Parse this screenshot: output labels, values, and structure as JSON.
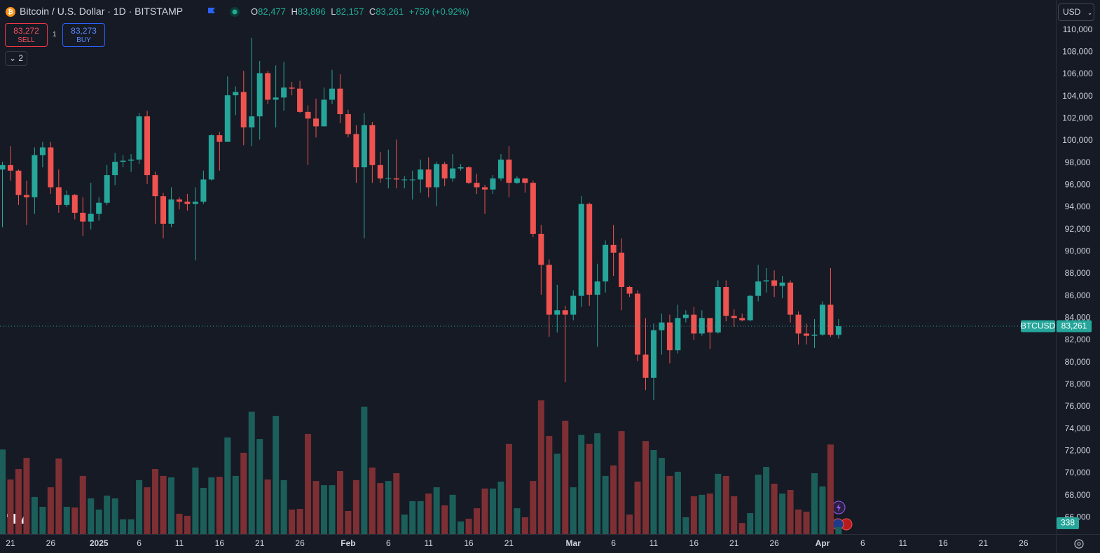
{
  "header": {
    "title": "Bitcoin / U.S. Dollar · 1D · BITSTAMP",
    "ohlc": [
      {
        "label": "O",
        "value": "82,477"
      },
      {
        "label": "H",
        "value": "83,896"
      },
      {
        "label": "L",
        "value": "82,157"
      },
      {
        "label": "C",
        "value": "83,261"
      }
    ],
    "change": "+759 (+0.92%)"
  },
  "trade": {
    "sell_price": "83,272",
    "sell": "SELL",
    "quantity": "1",
    "buy_price": "83,273",
    "buy": "BUY"
  },
  "indicators_toggle": "2",
  "currency": "USD",
  "chart_data": {
    "type": "candlestick",
    "x": [
      "12-20",
      "12-21",
      "12-22",
      "12-23",
      "12-24",
      "12-25",
      "12-26",
      "12-27",
      "12-28",
      "12-29",
      "12-30",
      "12-31",
      "01-01",
      "01-02",
      "01-03",
      "01-04",
      "01-05",
      "01-06",
      "01-07",
      "01-08",
      "01-09",
      "01-10",
      "01-11",
      "01-12",
      "01-13",
      "01-14",
      "01-15",
      "01-16",
      "01-17",
      "01-18",
      "01-19",
      "01-20",
      "01-21",
      "01-22",
      "01-23",
      "01-24",
      "01-25",
      "01-26",
      "01-27",
      "01-28",
      "01-29",
      "01-30",
      "01-31",
      "02-01",
      "02-02",
      "02-03",
      "02-04",
      "02-05",
      "02-06",
      "02-07",
      "02-08",
      "02-09",
      "02-10",
      "02-11",
      "02-12",
      "02-13",
      "02-14",
      "02-15",
      "02-16",
      "02-17",
      "02-18",
      "02-19",
      "02-20",
      "02-21",
      "02-22",
      "02-23",
      "02-24",
      "02-25",
      "02-26",
      "02-27",
      "02-28",
      "03-01",
      "03-02",
      "03-03",
      "03-04",
      "03-05",
      "03-06",
      "03-07",
      "03-08",
      "03-09",
      "03-10",
      "03-11",
      "03-12",
      "03-13",
      "03-14",
      "03-15",
      "03-16",
      "03-17",
      "03-18",
      "03-19",
      "03-20",
      "03-21",
      "03-22",
      "03-23",
      "03-24",
      "03-25",
      "03-26",
      "03-27",
      "03-28",
      "03-29",
      "03-30",
      "03-31",
      "04-01",
      "04-02",
      "04-03"
    ],
    "open": [
      97400,
      97800,
      97300,
      95100,
      94900,
      98700,
      99400,
      95800,
      94200,
      95100,
      93500,
      92700,
      93400,
      94400,
      96900,
      98100,
      98200,
      98300,
      102200,
      96900,
      95000,
      92500,
      94700,
      94500,
      94300,
      94500,
      96500,
      100500,
      99900,
      104100,
      104400,
      101200,
      102200,
      106100,
      103700,
      103900,
      104800,
      104700,
      102600,
      102000,
      101300,
      103700,
      104700,
      102400,
      100600,
      97600,
      101400,
      97800,
      96600,
      96600,
      96500,
      96500,
      96500,
      97400,
      95800,
      97900,
      96600,
      97500,
      97600,
      96200,
      95800,
      95600,
      96600,
      98300,
      96200,
      96600,
      96200,
      91600,
      88800,
      84300,
      84700,
      84300,
      86000,
      94300,
      86100,
      87300,
      90600,
      89900,
      86800,
      86200,
      80700,
      78600,
      82900,
      83600,
      81100,
      84000,
      84300,
      82600,
      84000,
      82700,
      86800,
      84200,
      84000,
      83800,
      86000,
      87300,
      87400,
      86900,
      87200,
      84300,
      82600,
      82400,
      82500,
      85200,
      82477
    ],
    "high": [
      98100,
      99500,
      97400,
      96400,
      99400,
      99900,
      99900,
      97400,
      95500,
      95200,
      94900,
      96200,
      94900,
      97800,
      98900,
      98700,
      98800,
      102500,
      102700,
      97200,
      95300,
      95800,
      94900,
      95200,
      95800,
      97300,
      100600,
      100800,
      105800,
      104900,
      106300,
      109300,
      107200,
      106300,
      106800,
      107100,
      105300,
      105400,
      103200,
      103800,
      104800,
      106400,
      106000,
      102800,
      101400,
      102500,
      101700,
      99000,
      99200,
      100100,
      96800,
      97300,
      98300,
      98500,
      98100,
      98100,
      98800,
      97900,
      97700,
      97000,
      96000,
      96900,
      98800,
      99500,
      96800,
      96600,
      96400,
      92400,
      89300,
      87000,
      85100,
      86500,
      95000,
      94400,
      88900,
      91000,
      92400,
      91200,
      86900,
      86500,
      84000,
      83500,
      84400,
      84300,
      85200,
      84700,
      85000,
      84700,
      84000,
      87400,
      87400,
      84800,
      84400,
      86100,
      88800,
      88500,
      88300,
      87800,
      87400,
      84600,
      83500,
      83900,
      85500,
      88500,
      83896
    ],
    "low": [
      92200,
      96400,
      94200,
      92400,
      93400,
      97600,
      95200,
      93500,
      94000,
      92900,
      91400,
      92000,
      92800,
      94200,
      96000,
      97600,
      97200,
      97900,
      96100,
      92500,
      91200,
      92200,
      93800,
      93700,
      89200,
      94300,
      96400,
      97300,
      99900,
      102300,
      99600,
      99500,
      100100,
      103300,
      101200,
      102700,
      104100,
      102500,
      97800,
      100300,
      101300,
      103300,
      101600,
      100300,
      96200,
      91200,
      96200,
      96200,
      95700,
      95700,
      95700,
      94700,
      95300,
      94900,
      94100,
      95900,
      96300,
      97300,
      96100,
      95200,
      93400,
      95200,
      96400,
      94900,
      96100,
      95300,
      91300,
      86100,
      82300,
      82700,
      78200,
      83800,
      85000,
      85100,
      81400,
      86300,
      87800,
      84700,
      85900,
      80100,
      77500,
      76600,
      80700,
      79900,
      80800,
      83600,
      82000,
      82400,
      81200,
      82600,
      83700,
      83200,
      83700,
      83700,
      85500,
      86300,
      85900,
      85800,
      83600,
      81600,
      81600,
      81300,
      82400,
      82300,
      82157
    ],
    "close": [
      97800,
      97300,
      95100,
      94900,
      98700,
      99400,
      95800,
      94200,
      95100,
      93500,
      92700,
      93400,
      94400,
      96900,
      98100,
      98200,
      98300,
      102200,
      96900,
      95000,
      92500,
      94700,
      94500,
      94300,
      94500,
      96500,
      100500,
      99900,
      104100,
      104400,
      101200,
      102200,
      106100,
      103700,
      103900,
      104800,
      104700,
      102600,
      102000,
      101300,
      103700,
      104700,
      102400,
      100600,
      97600,
      101400,
      97800,
      96600,
      96600,
      96500,
      96500,
      96500,
      97400,
      95800,
      97900,
      96600,
      97500,
      97600,
      96200,
      95800,
      95600,
      96600,
      98300,
      96200,
      96600,
      96200,
      91600,
      88800,
      84300,
      84700,
      84300,
      86000,
      94300,
      86100,
      87300,
      90600,
      89900,
      86800,
      86200,
      80700,
      78600,
      82900,
      83600,
      81100,
      84000,
      84300,
      82600,
      84000,
      82700,
      86800,
      84200,
      84000,
      83800,
      86000,
      87300,
      87400,
      86900,
      87200,
      84300,
      82600,
      82400,
      82500,
      85200,
      82477,
      83261
    ],
    "volume": [
      4030,
      2600,
      3100,
      3630,
      1770,
      1300,
      2230,
      3600,
      1300,
      1270,
      2770,
      1700,
      1170,
      1830,
      1700,
      700,
      700,
      2570,
      2230,
      3100,
      2770,
      2700,
      970,
      870,
      3170,
      2200,
      2700,
      2730,
      4600,
      2770,
      3870,
      5830,
      4530,
      2600,
      5630,
      2570,
      1170,
      1200,
      4770,
      2530,
      2330,
      2330,
      3000,
      1100,
      2570,
      6070,
      3170,
      2430,
      2530,
      2900,
      930,
      1570,
      1570,
      1930,
      2230,
      1370,
      1870,
      600,
      730,
      1230,
      2170,
      2170,
      2500,
      4300,
      1230,
      800,
      2530,
      6370,
      4670,
      3830,
      5400,
      2230,
      4730,
      4300,
      4800,
      2770,
      3270,
      4900,
      930,
      2500,
      4430,
      4000,
      3630,
      2770,
      2970,
      800,
      1800,
      1870,
      1930,
      2870,
      2770,
      1800,
      530,
      1000,
      2830,
      3200,
      2400,
      1930,
      2100,
      1170,
      1070,
      2900,
      2270,
      4270,
      338
    ],
    "ylim": [
      64500,
      112700
    ],
    "vlim": [
      0,
      7000
    ],
    "yticks": [
      {
        "value": 66000,
        "label": "66,000"
      },
      {
        "value": 68000,
        "label": "68,000"
      },
      {
        "value": 70000,
        "label": "70,000"
      },
      {
        "value": 72000,
        "label": "72,000"
      },
      {
        "value": 74000,
        "label": "74,000"
      },
      {
        "value": 76000,
        "label": "76,000"
      },
      {
        "value": 78000,
        "label": "78,000"
      },
      {
        "value": 80000,
        "label": "80,000"
      },
      {
        "value": 82000,
        "label": "82,000"
      },
      {
        "value": 84000,
        "label": "84,000"
      },
      {
        "value": 86000,
        "label": "86,000"
      },
      {
        "value": 88000,
        "label": "88,000"
      },
      {
        "value": 90000,
        "label": "90,000"
      },
      {
        "value": 92000,
        "label": "92,000"
      },
      {
        "value": 94000,
        "label": "94,000"
      },
      {
        "value": 96000,
        "label": "96,000"
      },
      {
        "value": 98000,
        "label": "98,000"
      },
      {
        "value": 100000,
        "label": "100,000"
      },
      {
        "value": 102000,
        "label": "102,000"
      },
      {
        "value": 104000,
        "label": "104,000"
      },
      {
        "value": 106000,
        "label": "106,000"
      },
      {
        "value": 108000,
        "label": "108,000"
      },
      {
        "value": 110000,
        "label": "110,000"
      }
    ],
    "xticks": [
      {
        "value": "12-21",
        "label": "21"
      },
      {
        "value": "12-26",
        "label": "26"
      },
      {
        "value": "01-01",
        "label": "2025"
      },
      {
        "value": "01-06",
        "label": "6"
      },
      {
        "value": "01-11",
        "label": "11"
      },
      {
        "value": "01-16",
        "label": "16"
      },
      {
        "value": "01-21",
        "label": "21"
      },
      {
        "value": "01-26",
        "label": "26"
      },
      {
        "value": "02-01",
        "label": "Feb"
      },
      {
        "value": "02-06",
        "label": "6"
      },
      {
        "value": "02-11",
        "label": "11"
      },
      {
        "value": "02-16",
        "label": "16"
      },
      {
        "value": "02-21",
        "label": "21"
      },
      {
        "value": "03-01",
        "label": "Mar"
      },
      {
        "value": "03-06",
        "label": "6"
      },
      {
        "value": "03-11",
        "label": "11"
      },
      {
        "value": "03-16",
        "label": "16"
      },
      {
        "value": "03-21",
        "label": "21"
      },
      {
        "value": "03-26",
        "label": "26"
      },
      {
        "value": "04-01",
        "label": "Apr"
      },
      {
        "value": "04-06",
        "label": "6"
      },
      {
        "value": "04-11",
        "label": "11"
      },
      {
        "value": "04-16",
        "label": "16"
      },
      {
        "value": "04-21",
        "label": "21"
      },
      {
        "value": "04-26",
        "label": "26"
      }
    ],
    "price_line": {
      "name": "BTCUSD",
      "label": "83,261"
    },
    "grid": false,
    "up_color": "#26a69a",
    "down_color": "#ef5350",
    "volume_up_color": "#1c5f5a",
    "volume_down_color": "#7e2f33"
  }
}
